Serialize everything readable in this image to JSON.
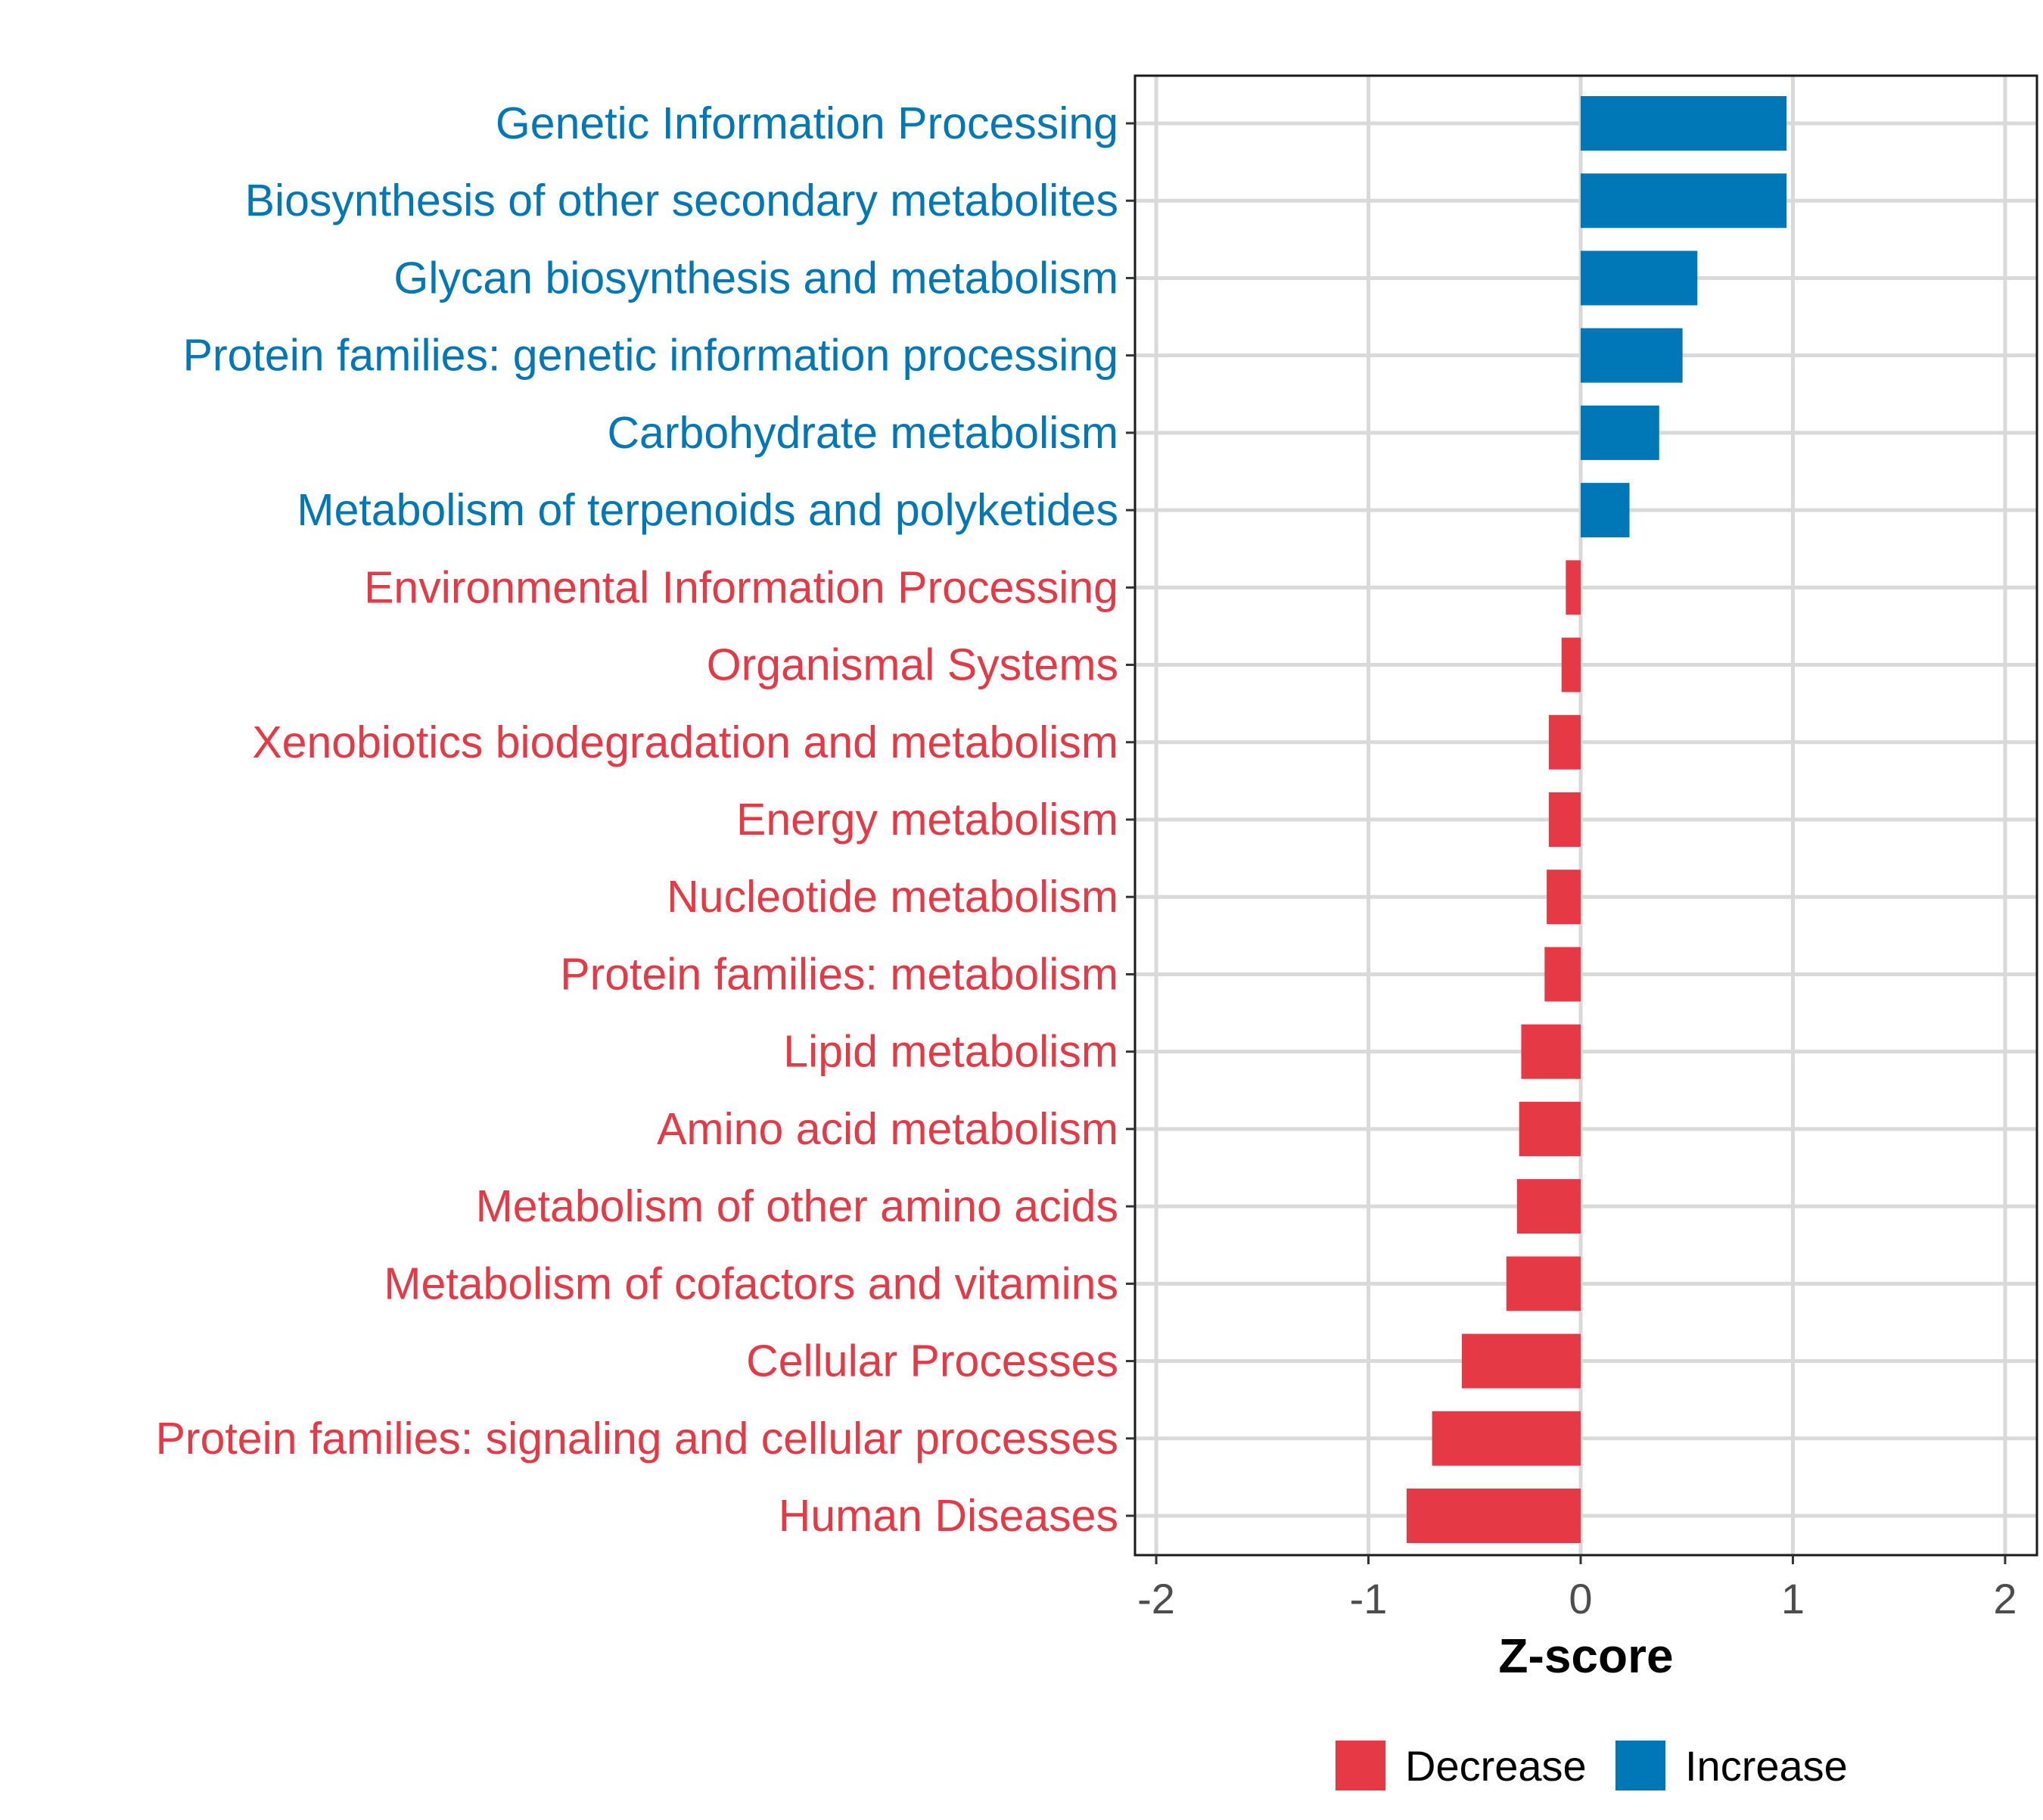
{
  "chart_data": {
    "type": "bar",
    "orientation": "horizontal",
    "title": "",
    "xlabel": "Z-score",
    "ylabel": "",
    "xlim": [
      -2.1,
      2.15
    ],
    "xticks": [
      -2,
      -1,
      0,
      1,
      2
    ],
    "xtick_labels": [
      "-2",
      "-1",
      "0",
      "1",
      "2"
    ],
    "grid": true,
    "legend": {
      "position": "bottom",
      "entries": [
        {
          "key": "Decrease",
          "label": "Decrease",
          "color": "#E63946"
        },
        {
          "key": "Increase",
          "label": "Increase",
          "color": "#0077B6"
        }
      ]
    },
    "categories": [
      "Genetic Information Processing",
      "Biosynthesis of other secondary metabolites",
      "Glycan biosynthesis and metabolism",
      "Protein families: genetic information processing",
      "Carbohydrate metabolism",
      "Metabolism of terpenoids and polyketides",
      "Environmental Information Processing",
      "Organismal Systems",
      "Xenobiotics biodegradation and metabolism",
      "Energy metabolism",
      "Nucleotide metabolism",
      "Protein families: metabolism",
      "Lipid metabolism",
      "Amino acid metabolism",
      "Metabolism of other amino acids",
      "Metabolism of cofactors and vitamins",
      "Cellular Processes",
      "Protein families: signaling and cellular processes",
      "Human Diseases"
    ],
    "values": [
      0.97,
      0.97,
      0.55,
      0.48,
      0.37,
      0.23,
      -0.07,
      -0.09,
      -0.15,
      -0.15,
      -0.16,
      -0.17,
      -0.28,
      -0.29,
      -0.3,
      -0.35,
      -0.56,
      -0.7,
      -0.82
    ],
    "groups": [
      "Increase",
      "Increase",
      "Increase",
      "Increase",
      "Increase",
      "Increase",
      "Decrease",
      "Decrease",
      "Decrease",
      "Decrease",
      "Decrease",
      "Decrease",
      "Decrease",
      "Decrease",
      "Decrease",
      "Decrease",
      "Decrease",
      "Decrease",
      "Decrease"
    ]
  }
}
